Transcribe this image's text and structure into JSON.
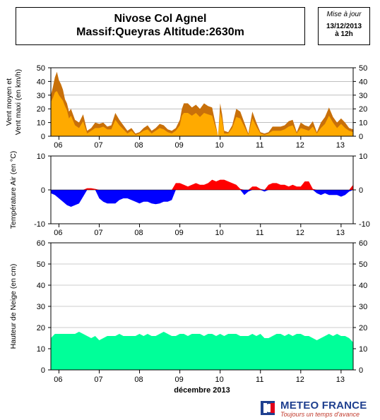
{
  "header": {
    "title_line1": "Nivose Col Agnel",
    "title_line2": "Massif:Queyras Altitude:2630m",
    "date_label": "Mise à jour",
    "date_value": "13/12/2013",
    "date_hour": "à 12h"
  },
  "logo": {
    "name": "METEO FRANCE",
    "tagline": "Toujours un temps d'avance"
  },
  "colors": {
    "wind_max": "#c8700a",
    "wind_mean": "#ffaa00",
    "temp_positive": "#ff0000",
    "temp_negative": "#0000ff",
    "snow": "#00ff99",
    "grid": "#999999"
  },
  "chart_data": [
    {
      "type": "area",
      "ylabel": "Vent moyen et Vent maxi (en km/h)",
      "ylim": [
        0,
        50
      ],
      "yticks": [
        0,
        10,
        20,
        30,
        40,
        50
      ],
      "xtick_labels": [
        "06",
        "07",
        "08",
        "09",
        "10",
        "11",
        "12",
        "13"
      ],
      "xtick_days": [
        6,
        7,
        8,
        9,
        10,
        11,
        12,
        13
      ],
      "grid": true,
      "series": [
        {
          "name": "Vent maxi",
          "x": [
            5.8,
            5.85,
            5.9,
            5.95,
            6.0,
            6.05,
            6.1,
            6.15,
            6.2,
            6.25,
            6.3,
            6.4,
            6.5,
            6.6,
            6.7,
            6.8,
            6.9,
            7.0,
            7.1,
            7.2,
            7.3,
            7.4,
            7.5,
            7.6,
            7.7,
            7.8,
            7.9,
            8.0,
            8.1,
            8.2,
            8.3,
            8.4,
            8.5,
            8.6,
            8.7,
            8.8,
            8.9,
            9.0,
            9.05,
            9.1,
            9.2,
            9.3,
            9.4,
            9.5,
            9.6,
            9.7,
            9.8,
            9.9,
            9.95,
            10.0,
            10.05,
            10.1,
            10.2,
            10.3,
            10.4,
            10.5,
            10.6,
            10.7,
            10.8,
            10.9,
            11.0,
            11.1,
            11.2,
            11.3,
            11.4,
            11.5,
            11.6,
            11.7,
            11.8,
            11.9,
            12.0,
            12.1,
            12.2,
            12.3,
            12.4,
            12.5,
            12.6,
            12.7,
            12.8,
            12.9,
            13.0,
            13.1,
            13.2,
            13.3
          ],
          "values": [
            30,
            36,
            43,
            47,
            41,
            38,
            34,
            27,
            24,
            18,
            20,
            12,
            10,
            16,
            4,
            6,
            10,
            9,
            10,
            7,
            8,
            17,
            12,
            8,
            4,
            6,
            2,
            3,
            6,
            8,
            4,
            6,
            9,
            8,
            5,
            4,
            6,
            12,
            20,
            24,
            24,
            21,
            23,
            20,
            24,
            22,
            21,
            7,
            0,
            24,
            16,
            4,
            3,
            8,
            20,
            18,
            10,
            2,
            18,
            10,
            3,
            2,
            3,
            7,
            7,
            7,
            8,
            11,
            12,
            3,
            10,
            8,
            7,
            11,
            3,
            10,
            14,
            21,
            14,
            10,
            13,
            10,
            6,
            5
          ]
        },
        {
          "name": "Vent moyen",
          "x": [
            5.8,
            5.85,
            5.9,
            5.95,
            6.0,
            6.05,
            6.1,
            6.15,
            6.2,
            6.25,
            6.3,
            6.4,
            6.5,
            6.6,
            6.7,
            6.8,
            6.9,
            7.0,
            7.1,
            7.2,
            7.3,
            7.4,
            7.5,
            7.6,
            7.7,
            7.8,
            7.9,
            8.0,
            8.1,
            8.2,
            8.3,
            8.4,
            8.5,
            8.6,
            8.7,
            8.8,
            8.9,
            9.0,
            9.05,
            9.1,
            9.2,
            9.3,
            9.4,
            9.5,
            9.6,
            9.7,
            9.8,
            9.9,
            9.95,
            10.0,
            10.05,
            10.1,
            10.2,
            10.3,
            10.4,
            10.5,
            10.6,
            10.7,
            10.8,
            10.9,
            11.0,
            11.1,
            11.2,
            11.3,
            11.4,
            11.5,
            11.6,
            11.7,
            11.8,
            11.9,
            12.0,
            12.1,
            12.2,
            12.3,
            12.4,
            12.5,
            12.6,
            12.7,
            12.8,
            12.9,
            13.0,
            13.1,
            13.2,
            13.3
          ],
          "values": [
            25,
            28,
            32,
            33,
            30,
            28,
            26,
            22,
            19,
            13,
            15,
            8,
            6,
            11,
            2,
            4,
            6,
            6,
            7,
            5,
            5,
            12,
            8,
            5,
            2,
            4,
            1,
            2,
            4,
            5,
            2,
            4,
            6,
            5,
            3,
            2,
            4,
            8,
            15,
            17,
            17,
            15,
            17,
            14,
            17,
            16,
            15,
            5,
            0,
            18,
            12,
            2,
            2,
            6,
            14,
            13,
            7,
            1,
            13,
            7,
            2,
            1,
            2,
            4,
            4,
            4,
            5,
            7,
            8,
            2,
            6,
            5,
            4,
            7,
            2,
            6,
            9,
            15,
            10,
            6,
            9,
            6,
            4,
            3
          ]
        }
      ]
    },
    {
      "type": "area",
      "ylabel": "Température Air (en °C)",
      "ylim": [
        -10,
        10
      ],
      "yticks": [
        -10,
        0,
        10
      ],
      "xtick_labels": [
        "06",
        "07",
        "08",
        "09",
        "10",
        "11",
        "12",
        "13"
      ],
      "xtick_days": [
        6,
        7,
        8,
        9,
        10,
        11,
        12,
        13
      ],
      "grid": true,
      "series": [
        {
          "name": "Température",
          "x": [
            5.8,
            5.9,
            6.0,
            6.1,
            6.2,
            6.3,
            6.4,
            6.5,
            6.6,
            6.7,
            6.8,
            6.9,
            7.0,
            7.1,
            7.2,
            7.3,
            7.4,
            7.5,
            7.6,
            7.7,
            7.8,
            7.9,
            8.0,
            8.1,
            8.2,
            8.3,
            8.4,
            8.5,
            8.6,
            8.7,
            8.8,
            8.9,
            9.0,
            9.1,
            9.2,
            9.3,
            9.4,
            9.5,
            9.6,
            9.7,
            9.8,
            9.9,
            10.0,
            10.1,
            10.2,
            10.3,
            10.4,
            10.5,
            10.6,
            10.7,
            10.8,
            10.9,
            11.0,
            11.1,
            11.2,
            11.3,
            11.4,
            11.5,
            11.6,
            11.7,
            11.8,
            11.9,
            12.0,
            12.1,
            12.2,
            12.3,
            12.4,
            12.5,
            12.6,
            12.7,
            12.8,
            12.9,
            13.0,
            13.1,
            13.2,
            13.3
          ],
          "values": [
            -1,
            -1.5,
            -2.5,
            -3.5,
            -4.5,
            -5,
            -4.5,
            -4,
            -2,
            0.5,
            0.5,
            0.3,
            -2.5,
            -3.5,
            -4,
            -4,
            -4,
            -3,
            -2.5,
            -2.5,
            -3,
            -3.5,
            -4,
            -3.5,
            -3.5,
            -4,
            -4.2,
            -4,
            -3.5,
            -3.5,
            -3,
            2,
            2,
            1.5,
            1,
            1.5,
            2,
            1.5,
            1.5,
            2,
            3,
            2.5,
            3,
            3,
            2.5,
            2,
            1.5,
            0.3,
            -1.5,
            -0.5,
            1,
            1,
            0.3,
            -0.5,
            1.5,
            2,
            2,
            1.5,
            1.5,
            1,
            1.5,
            1,
            1,
            2.5,
            2.5,
            0.3,
            -1,
            -1.5,
            -1,
            -1.5,
            -1.5,
            -1.5,
            -2,
            -1.5,
            -0.5,
            1.5
          ]
        }
      ]
    },
    {
      "type": "area",
      "ylabel": "Hauteur de Neige (en cm)",
      "xlabel": "décembre 2013",
      "ylim": [
        0,
        60
      ],
      "yticks": [
        0,
        10,
        20,
        30,
        40,
        50,
        60
      ],
      "xtick_labels": [
        "06",
        "07",
        "08",
        "09",
        "10",
        "11",
        "12",
        "13"
      ],
      "xtick_days": [
        6,
        7,
        8,
        9,
        10,
        11,
        12,
        13
      ],
      "grid": true,
      "series": [
        {
          "name": "Hauteur de neige",
          "x": [
            5.8,
            5.9,
            6.0,
            6.1,
            6.2,
            6.3,
            6.4,
            6.5,
            6.6,
            6.7,
            6.8,
            6.9,
            7.0,
            7.1,
            7.2,
            7.3,
            7.4,
            7.5,
            7.6,
            7.7,
            7.8,
            7.9,
            8.0,
            8.1,
            8.2,
            8.3,
            8.4,
            8.5,
            8.6,
            8.7,
            8.8,
            8.9,
            9.0,
            9.1,
            9.2,
            9.3,
            9.4,
            9.5,
            9.6,
            9.7,
            9.8,
            9.9,
            10.0,
            10.1,
            10.2,
            10.3,
            10.4,
            10.5,
            10.6,
            10.7,
            10.8,
            10.9,
            11.0,
            11.1,
            11.2,
            11.3,
            11.4,
            11.5,
            11.6,
            11.7,
            11.8,
            11.9,
            12.0,
            12.1,
            12.2,
            12.3,
            12.4,
            12.5,
            12.6,
            12.7,
            12.8,
            12.9,
            13.0,
            13.1,
            13.2,
            13.3
          ],
          "values": [
            15,
            17,
            17,
            17,
            17,
            17,
            17,
            18,
            17,
            16,
            15,
            16,
            14,
            15,
            16,
            16,
            16,
            17,
            16,
            16,
            16,
            16,
            17,
            16,
            17,
            16,
            16,
            17,
            18,
            17,
            16,
            16,
            17,
            17,
            16,
            17,
            17,
            17,
            16,
            17,
            17,
            16,
            17,
            16,
            17,
            17,
            17,
            16,
            16,
            16,
            17,
            16,
            17,
            15,
            15,
            16,
            17,
            17,
            16,
            17,
            16,
            17,
            17,
            16,
            16,
            15,
            14,
            15,
            16,
            17,
            16,
            17,
            16,
            16,
            15,
            13
          ]
        }
      ]
    }
  ]
}
